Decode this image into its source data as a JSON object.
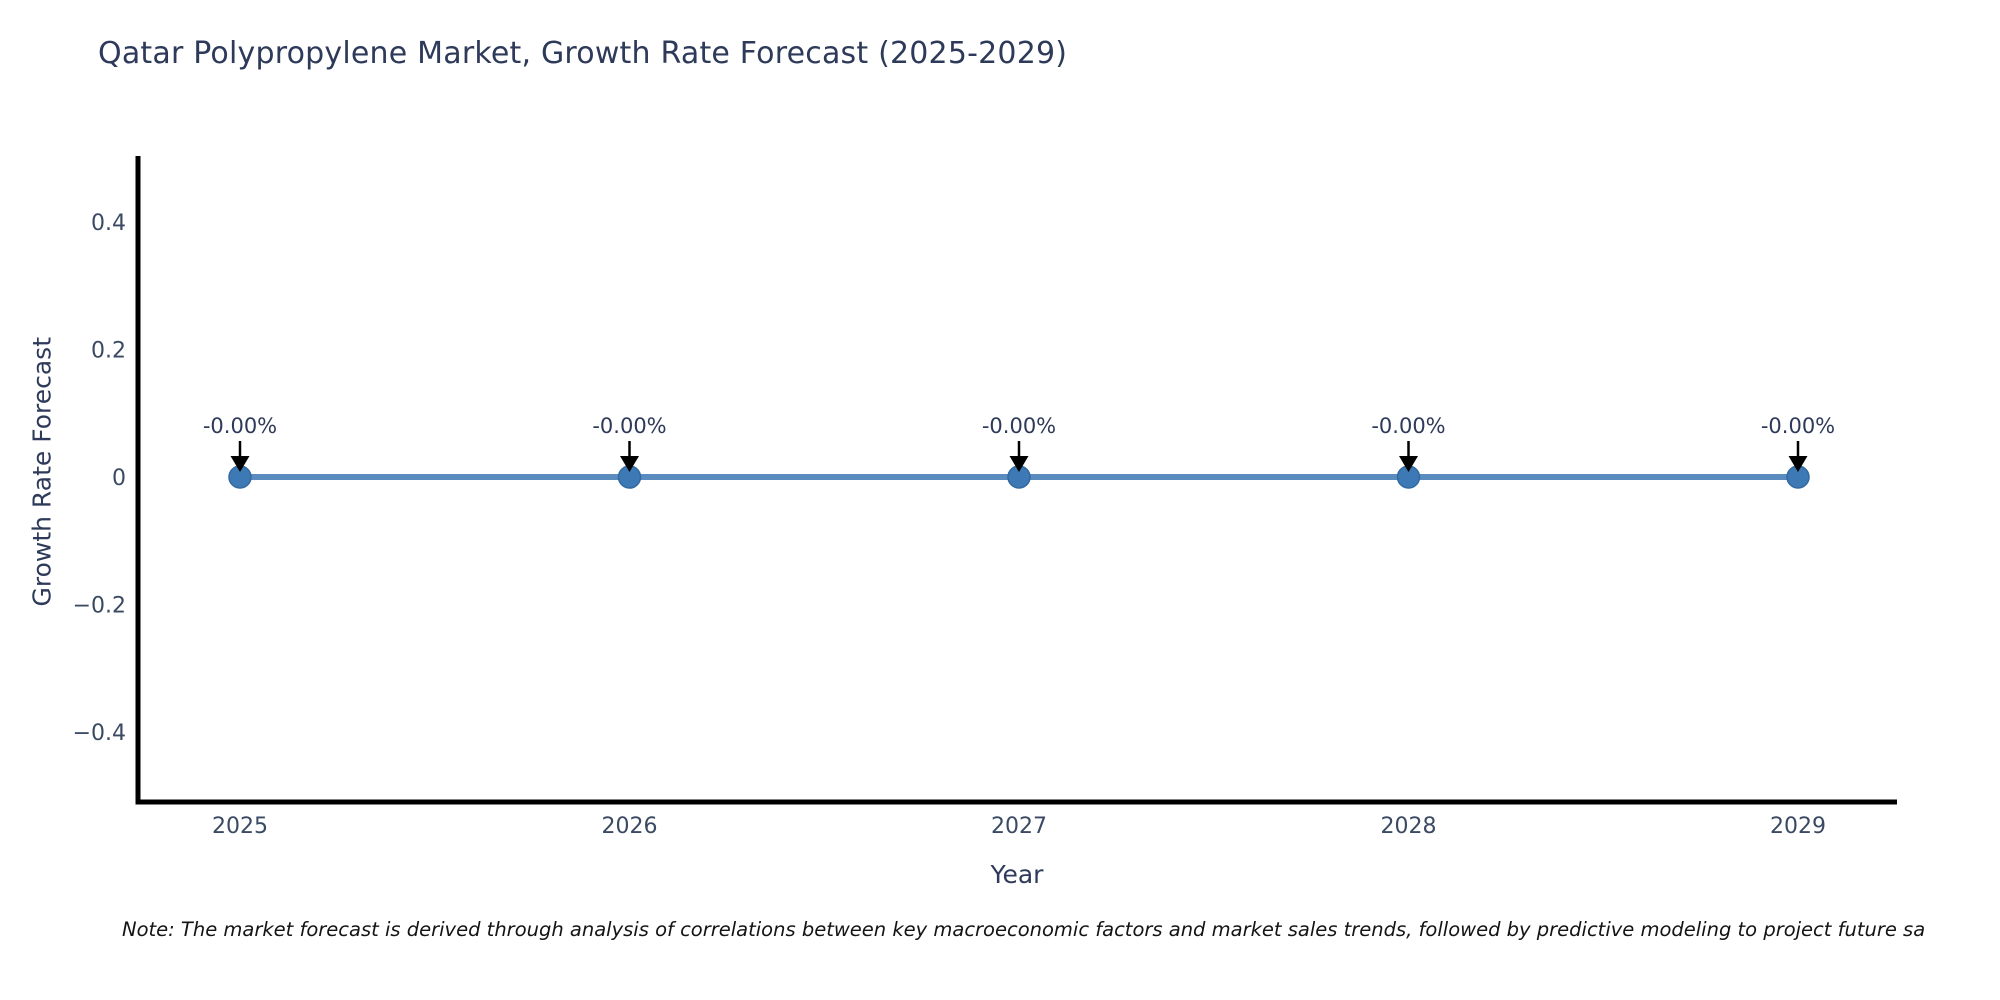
{
  "title": {
    "text": "Qatar Polypropylene Market, Growth Rate Forecast (2025-2029)"
  },
  "note": {
    "text": "Note: The market forecast is derived through analysis of correlations between key macroeconomic factors and market sales trends, followed by predictive modeling to project future sa"
  },
  "colors": {
    "background": "#ffffff",
    "title_text": "#2e3a59",
    "axis_line": "#000000",
    "tick_text": "#3b4a63",
    "series_line": "#5a8cc0",
    "marker_fill": "#3c79b5",
    "marker_edge": "#33699f",
    "annotation_text": "#2e3a59",
    "arrow": "#000000",
    "note_text": "#141414"
  },
  "chart_data": {
    "type": "line",
    "title": "Qatar Polypropylene Market, Growth Rate Forecast (2025-2029)",
    "xlabel": "Year",
    "ylabel": "Growth Rate Forecast",
    "x": [
      2025,
      2026,
      2027,
      2028,
      2029
    ],
    "series": [
      {
        "name": "Growth Rate Forecast",
        "values": [
          0,
          0,
          0,
          0,
          0
        ]
      }
    ],
    "data_labels": [
      "-0.00%",
      "-0.00%",
      "-0.00%",
      "-0.00%",
      "-0.00%"
    ],
    "xtick_labels": [
      "2025",
      "2026",
      "2027",
      "2028",
      "2029"
    ],
    "yticks": {
      "values": [
        0.4,
        0.2,
        0,
        -0.2,
        -0.4
      ],
      "labels": [
        "0.4",
        "0.2",
        "0",
        "−0.2",
        "−0.4"
      ]
    },
    "ylim": [
      -0.5,
      0.5
    ],
    "xlim": [
      2024.74,
      2029.25
    ],
    "grid": false,
    "legend": false,
    "marker": "circle",
    "annotation_arrows": true
  }
}
